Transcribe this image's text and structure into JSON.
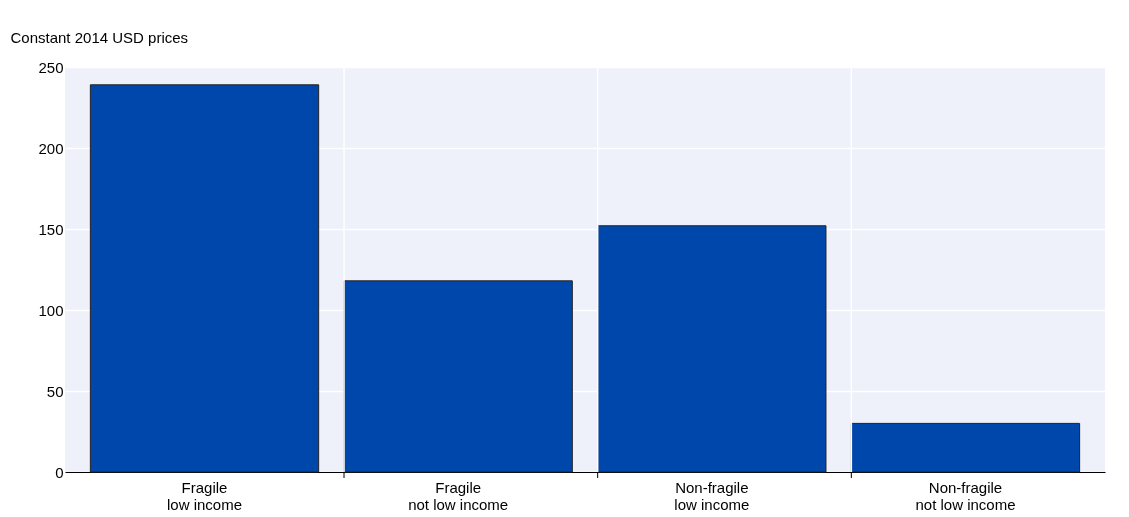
{
  "chart_data": {
    "type": "bar",
    "ylabel": "Constant 2014 USD prices",
    "categories": [
      "Fragile\nlow income",
      "Fragile\nnot low income",
      "Non-fragile\nlow income",
      "Non-fragile\nnot low income"
    ],
    "values": [
      239,
      118,
      152,
      30
    ],
    "color": "#0047ab",
    "ylim": [
      0,
      250
    ],
    "yticks": [
      0,
      50,
      100,
      150,
      200,
      250
    ],
    "grid": true
  }
}
